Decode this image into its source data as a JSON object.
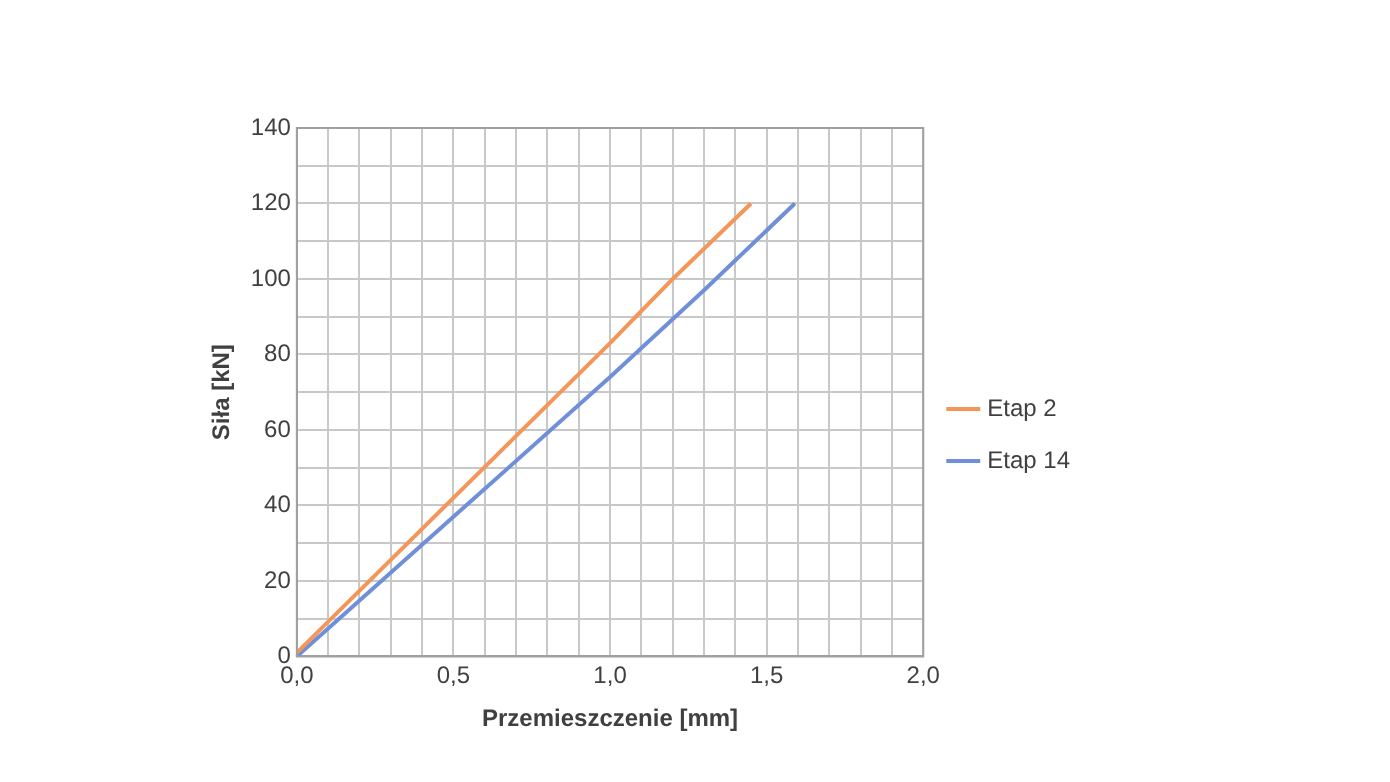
{
  "chart_data": {
    "type": "line",
    "xlabel": "Przemieszczenie [mm]",
    "ylabel": "Siła [kN]",
    "xlim": [
      0,
      2
    ],
    "xticks": [
      {
        "value": 0,
        "label": "0,0"
      },
      {
        "value": 0.1,
        "label": null
      },
      {
        "value": 0.2,
        "label": null
      },
      {
        "value": 0.3,
        "label": null
      },
      {
        "value": 0.4,
        "label": null
      },
      {
        "value": 0.5,
        "label": "0,5"
      },
      {
        "value": 0.6,
        "label": null
      },
      {
        "value": 0.7,
        "label": null
      },
      {
        "value": 0.8,
        "label": null
      },
      {
        "value": 0.9,
        "label": null
      },
      {
        "value": 1,
        "label": "1,0"
      },
      {
        "value": 1.1,
        "label": null
      },
      {
        "value": 1.2,
        "label": null
      },
      {
        "value": 1.3,
        "label": null
      },
      {
        "value": 1.4,
        "label": null
      },
      {
        "value": 1.5,
        "label": "1,5"
      },
      {
        "value": 1.6,
        "label": null
      },
      {
        "value": 1.7,
        "label": null
      },
      {
        "value": 1.8,
        "label": null
      },
      {
        "value": 1.9,
        "label": null
      },
      {
        "value": 2,
        "label": "2,0"
      }
    ],
    "ylim": [
      0,
      140
    ],
    "yticks": [
      0,
      {
        "value": 10,
        "label": null
      },
      20,
      {
        "value": 30,
        "label": null
      },
      40,
      {
        "value": 50,
        "label": null
      },
      60,
      {
        "value": 70,
        "label": null
      },
      80,
      {
        "value": 90,
        "label": null
      },
      100,
      {
        "value": 110,
        "label": null
      },
      120,
      {
        "value": 130,
        "label": null
      },
      140
    ],
    "grid": true,
    "legend": "right",
    "marker": "none",
    "line_style": "solid",
    "series": [
      {
        "name": "Etap 2",
        "color": "#f4965a",
        "x": [
          0,
          0.5,
          1.0,
          1.2,
          1.45
        ],
        "values": [
          1,
          42,
          83,
          100,
          120
        ]
      },
      {
        "name": "Etap 14",
        "color": "#6f8fd8",
        "x": [
          0,
          0.5,
          1.0,
          1.3,
          1.59
        ],
        "values": [
          0,
          37,
          74,
          97,
          120
        ]
      }
    ]
  }
}
